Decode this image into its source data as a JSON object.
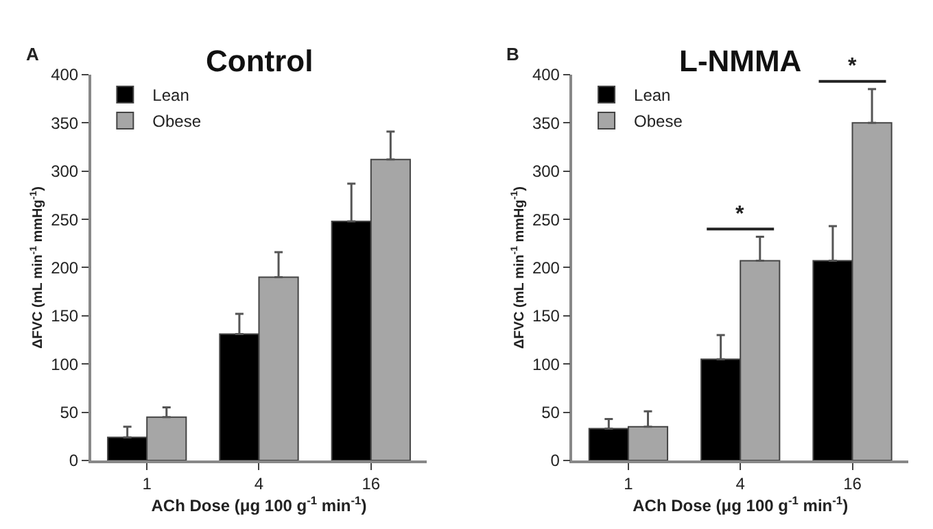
{
  "chart_data": [
    {
      "type": "bar",
      "title": "Control",
      "xlabel": "ACh Dose (μg 100 g$^{-1}$ min$^{-1}$)",
      "ylabel": "ΔFVC (mL min$^{-1}$ mmHg$^{-1}$)",
      "categories": [
        "1",
        "4",
        "16"
      ],
      "series": [
        {
          "name": "Lean",
          "color": "#000000",
          "values": [
            24,
            131,
            248
          ],
          "errors": [
            [
              24,
              35
            ],
            [
              131,
              152
            ],
            [
              248,
              287
            ]
          ]
        },
        {
          "name": "Obese",
          "color": "#a6a6a6",
          "values": [
            45,
            190,
            312
          ],
          "errors": [
            [
              45,
              55
            ],
            [
              190,
              216
            ],
            [
              312,
              341
            ]
          ]
        }
      ],
      "ylim": [
        0,
        400
      ],
      "yticks": [
        0,
        50,
        100,
        150,
        200,
        250,
        300,
        350,
        400
      ],
      "legend": "top left",
      "annotations": [
        "A"
      ]
    },
    {
      "type": "bar",
      "title": "L-NMMA",
      "xlabel": "ACh Dose (μg 100 g$^{-1}$ min$^{-1}$)",
      "ylabel": "ΔFVC (mL min$^{-1}$ mmHg$^{-1}$)",
      "categories": [
        "1",
        "4",
        "16"
      ],
      "series": [
        {
          "name": "Lean",
          "color": "#000000",
          "values": [
            33,
            105,
            207
          ],
          "errors": [
            [
              33,
              43
            ],
            [
              105,
              130
            ],
            [
              207,
              243
            ]
          ]
        },
        {
          "name": "Obese",
          "color": "#a6a6a6",
          "values": [
            35,
            207,
            350
          ],
          "errors": [
            [
              35,
              51
            ],
            [
              207,
              232
            ],
            [
              350,
              385
            ]
          ]
        }
      ],
      "ylim": [
        0,
        400
      ],
      "yticks": [
        0,
        50,
        100,
        150,
        200,
        250,
        300,
        350,
        400
      ],
      "legend": "top left",
      "annotations": [
        "B",
        "*",
        "*"
      ]
    }
  ]
}
